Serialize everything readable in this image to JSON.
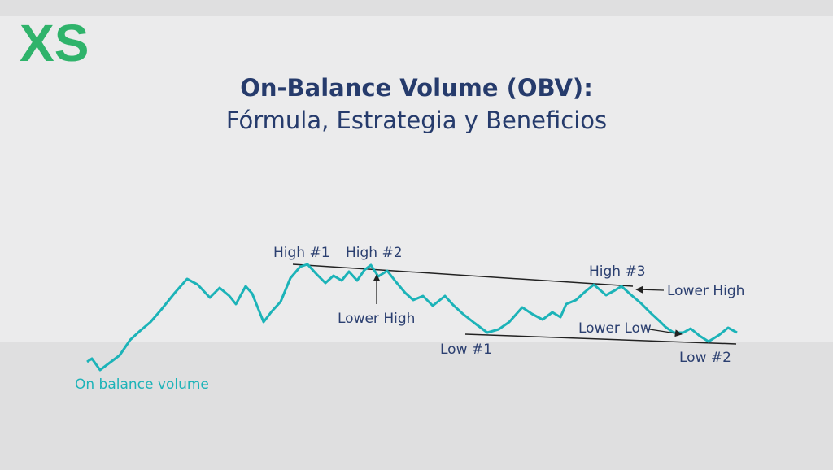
{
  "logo": "XS",
  "title": {
    "line1": "On-Balance Volume (OBV):",
    "line2": "Fórmula, Estrategia y Beneficios"
  },
  "labels": {
    "high1": "High #1",
    "high2": "High #2",
    "lower_high_1": "Lower High",
    "low1": "Low #1",
    "high3": "High #3",
    "lower_high_2": "Lower High",
    "lower_low": "Lower Low",
    "low2": "Low #2",
    "series": "On balance volume"
  }
}
